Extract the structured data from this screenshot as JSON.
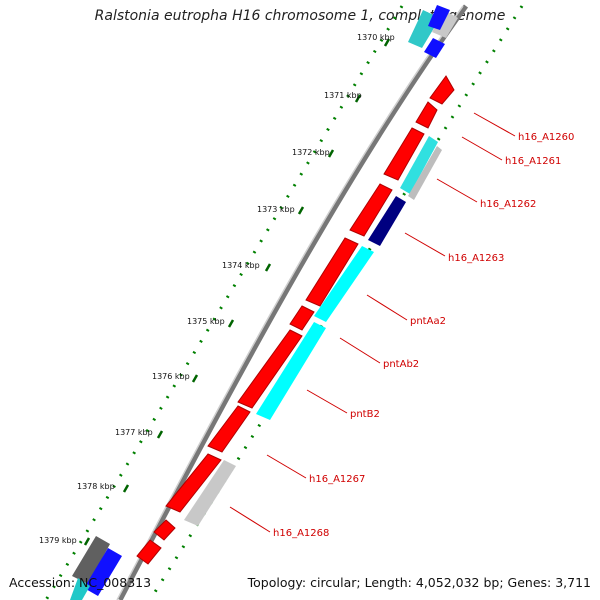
{
  "title": "Ralstonia eutropha H16 chromosome 1, complete genome",
  "footer": {
    "accession": "Accession: NC_008313",
    "summary": "Topology: circular; Length: 4,052,032 bp; Genes: 3,711"
  },
  "ticks": [
    "1370 kbp",
    "1371 kbp",
    "1372 kbp",
    "1373 kbp",
    "1374 kbp",
    "1375 kbp",
    "1376 kbp",
    "1377 kbp",
    "1378 kbp",
    "1379 kbp"
  ],
  "genes": [
    "h16_A1260",
    "h16_A1261",
    "h16_A1262",
    "h16_A1263",
    "pntAa2",
    "pntAb2",
    "pntB2",
    "h16_A1267",
    "h16_A1268"
  ],
  "colors": {
    "forward_cds": "#ff0000",
    "reverse_cds": "#00ffff",
    "reverse_cds_alt": "#0000ff",
    "dark_cds": "#000080",
    "grey_cds": "#c0c0c0",
    "backbone": "#888888",
    "tick_dots": "#008000",
    "label": "#d00000"
  }
}
